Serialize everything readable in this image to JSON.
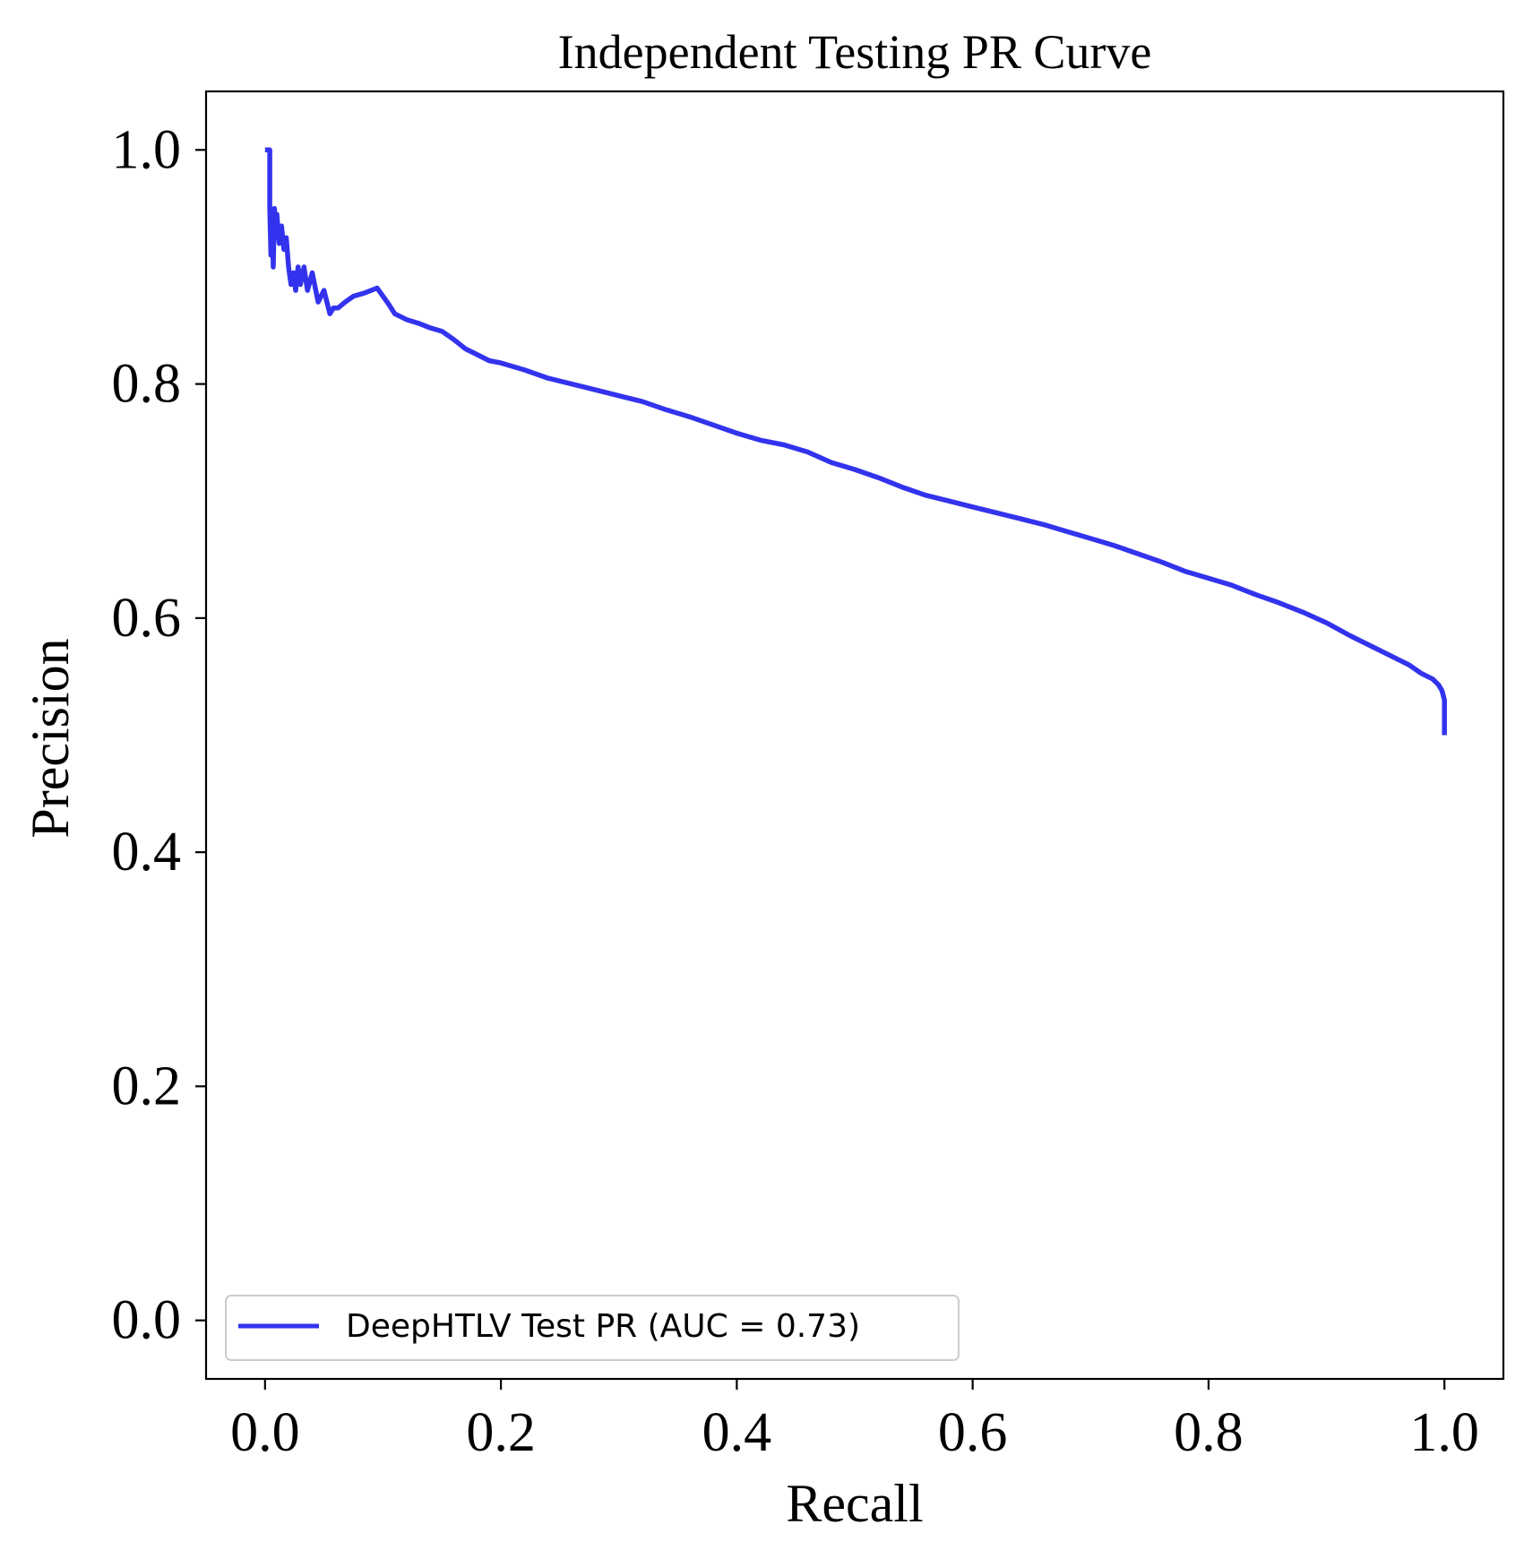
{
  "chart_data": {
    "type": "line",
    "title": "Independent Testing PR Curve",
    "xlabel": "Recall",
    "ylabel": "Precision",
    "xlim": [
      -0.05,
      1.05
    ],
    "ylim": [
      -0.05,
      1.05
    ],
    "xticks": [
      "0.0",
      "0.2",
      "0.4",
      "0.6",
      "0.8",
      "1.0"
    ],
    "yticks": [
      "0.0",
      "0.2",
      "0.4",
      "0.6",
      "0.8",
      "1.0"
    ],
    "grid": false,
    "legend": {
      "placement": "lower-left",
      "entries": [
        "DeepHTLV Test PR (AUC = 0.73)"
      ]
    },
    "series": [
      {
        "name": "DeepHTLV Test PR (AUC = 0.73)",
        "color": "#3333ee",
        "x": [
          0.0,
          0.002,
          0.004,
          0.004,
          0.005,
          0.006,
          0.007,
          0.008,
          0.009,
          0.01,
          0.012,
          0.014,
          0.016,
          0.018,
          0.02,
          0.022,
          0.024,
          0.026,
          0.028,
          0.03,
          0.033,
          0.036,
          0.04,
          0.045,
          0.05,
          0.055,
          0.058,
          0.062,
          0.068,
          0.075,
          0.085,
          0.095,
          0.1,
          0.105,
          0.11,
          0.12,
          0.13,
          0.14,
          0.15,
          0.16,
          0.17,
          0.18,
          0.19,
          0.2,
          0.22,
          0.24,
          0.26,
          0.28,
          0.3,
          0.32,
          0.34,
          0.36,
          0.38,
          0.4,
          0.42,
          0.44,
          0.46,
          0.48,
          0.5,
          0.52,
          0.54,
          0.56,
          0.58,
          0.6,
          0.62,
          0.64,
          0.66,
          0.68,
          0.7,
          0.72,
          0.74,
          0.76,
          0.78,
          0.8,
          0.82,
          0.84,
          0.86,
          0.88,
          0.9,
          0.92,
          0.94,
          0.96,
          0.97,
          0.98,
          0.99,
          0.995,
          0.998,
          1.0,
          1.0
        ],
        "y": [
          1.0,
          1.0,
          1.0,
          0.95,
          0.91,
          0.94,
          0.9,
          0.95,
          0.93,
          0.945,
          0.92,
          0.935,
          0.915,
          0.925,
          0.9,
          0.885,
          0.895,
          0.88,
          0.9,
          0.885,
          0.9,
          0.88,
          0.895,
          0.87,
          0.88,
          0.86,
          0.865,
          0.865,
          0.87,
          0.875,
          0.878,
          0.882,
          0.875,
          0.868,
          0.86,
          0.855,
          0.852,
          0.848,
          0.845,
          0.838,
          0.83,
          0.825,
          0.82,
          0.818,
          0.812,
          0.805,
          0.8,
          0.795,
          0.79,
          0.785,
          0.778,
          0.772,
          0.765,
          0.758,
          0.752,
          0.748,
          0.742,
          0.733,
          0.727,
          0.72,
          0.712,
          0.705,
          0.7,
          0.695,
          0.69,
          0.685,
          0.68,
          0.674,
          0.668,
          0.662,
          0.655,
          0.648,
          0.64,
          0.634,
          0.628,
          0.62,
          0.613,
          0.605,
          0.596,
          0.585,
          0.575,
          0.565,
          0.56,
          0.553,
          0.548,
          0.543,
          0.538,
          0.53,
          0.5
        ]
      }
    ]
  }
}
